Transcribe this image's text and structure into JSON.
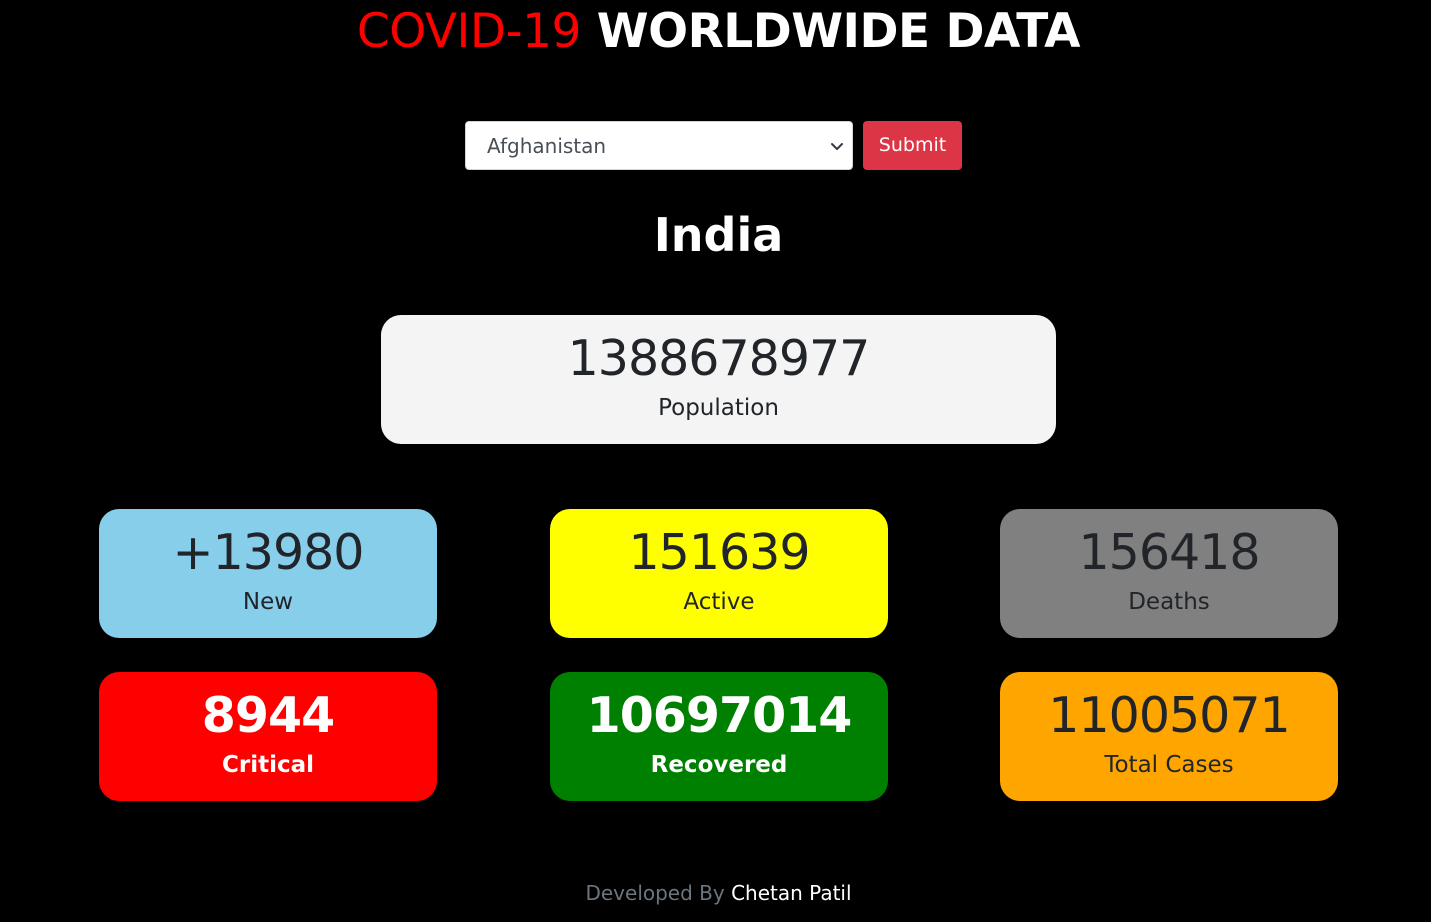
{
  "header": {
    "title_accent": "COVID-19",
    "title_rest": "WORLDWIDE DATA"
  },
  "form": {
    "country_select_value": "Afghanistan",
    "submit_label": "Submit"
  },
  "country_name": "India",
  "stats": {
    "population": {
      "value": "1388678977",
      "label": "Population"
    },
    "new": {
      "value": "+13980",
      "label": "New"
    },
    "active": {
      "value": "151639",
      "label": "Active"
    },
    "deaths": {
      "value": "156418",
      "label": "Deaths"
    },
    "critical": {
      "value": "8944",
      "label": "Critical"
    },
    "recovered": {
      "value": "10697014",
      "label": "Recovered"
    },
    "total": {
      "value": "11005071",
      "label": "Total Cases"
    }
  },
  "footer": {
    "prefix": "Developed By",
    "author": "Chetan Patil"
  },
  "colors": {
    "accent": "#ff0000",
    "submit": "#dc3545",
    "new": "#87ceeb",
    "active": "#ffff00",
    "deaths": "#808080",
    "critical": "#ff0000",
    "recovered": "#008000",
    "total": "#ffa500",
    "population": "#f4f4f4"
  },
  "icons": {
    "select_arrow": "chevron-down-icon"
  }
}
